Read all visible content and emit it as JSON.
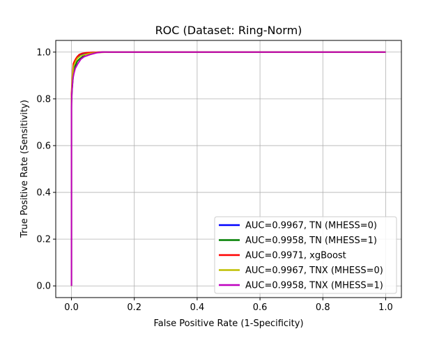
{
  "chart_data": {
    "type": "line",
    "title": "ROC (Dataset: Ring-Norm)",
    "xlabel": "False Positive Rate (1-Specificity)",
    "ylabel": "True Positive Rate (Sensitivity)",
    "xlim": [
      -0.05,
      1.05
    ],
    "ylim": [
      -0.05,
      1.05
    ],
    "xticks": [
      0.0,
      0.2,
      0.4,
      0.6,
      0.8,
      1.0
    ],
    "xtick_labels": [
      "0.0",
      "0.2",
      "0.4",
      "0.6",
      "0.8",
      "1.0"
    ],
    "yticks": [
      0.0,
      0.2,
      0.4,
      0.6,
      0.8,
      1.0
    ],
    "ytick_labels": [
      "0.0",
      "0.2",
      "0.4",
      "0.6",
      "0.8",
      "1.0"
    ],
    "grid": true,
    "legend_position": "bottom-right",
    "series": [
      {
        "name": "AUC=0.9967, TN (MHESS=0)",
        "color": "#0000ff",
        "x": [
          0.0,
          0.0,
          0.002,
          0.004,
          0.006,
          0.01,
          0.015,
          0.02,
          0.03,
          0.04,
          0.05,
          0.07,
          0.1,
          1.0
        ],
        "y": [
          0.0,
          0.8,
          0.86,
          0.9,
          0.93,
          0.95,
          0.97,
          0.98,
          0.99,
          0.995,
          0.997,
          0.999,
          1.0,
          1.0
        ]
      },
      {
        "name": "AUC=0.9958, TN (MHESS=1)",
        "color": "#008000",
        "x": [
          0.0,
          0.0,
          0.002,
          0.005,
          0.008,
          0.012,
          0.018,
          0.025,
          0.035,
          0.045,
          0.06,
          0.08,
          0.1,
          1.0
        ],
        "y": [
          0.0,
          0.78,
          0.84,
          0.89,
          0.92,
          0.94,
          0.96,
          0.97,
          0.98,
          0.99,
          0.995,
          0.998,
          1.0,
          1.0
        ]
      },
      {
        "name": "AUC=0.9971, xgBoost",
        "color": "#ff0000",
        "x": [
          0.0,
          0.0,
          0.002,
          0.004,
          0.006,
          0.009,
          0.013,
          0.018,
          0.025,
          0.035,
          0.05,
          0.07,
          0.09,
          1.0
        ],
        "y": [
          0.0,
          0.82,
          0.88,
          0.92,
          0.95,
          0.96,
          0.97,
          0.98,
          0.99,
          0.995,
          0.998,
          0.999,
          1.0,
          1.0
        ]
      },
      {
        "name": "AUC=0.9967, TNX (MHESS=0)",
        "color": "#bfbf00",
        "x": [
          0.0,
          0.0,
          0.002,
          0.004,
          0.007,
          0.01,
          0.015,
          0.02,
          0.03,
          0.045,
          0.06,
          0.08,
          0.12,
          1.0
        ],
        "y": [
          0.0,
          0.8,
          0.87,
          0.91,
          0.94,
          0.95,
          0.965,
          0.975,
          0.985,
          0.99,
          0.995,
          0.998,
          1.0,
          1.0
        ]
      },
      {
        "name": "AUC=0.9958, TNX (MHESS=1)",
        "color": "#bf00bf",
        "x": [
          0.0,
          0.0,
          0.001,
          0.003,
          0.005,
          0.008,
          0.012,
          0.016,
          0.02,
          0.025,
          0.03,
          0.04,
          0.05,
          0.06,
          0.08,
          0.1,
          1.0
        ],
        "y": [
          0.0,
          0.76,
          0.82,
          0.86,
          0.89,
          0.91,
          0.93,
          0.94,
          0.95,
          0.96,
          0.97,
          0.98,
          0.985,
          0.99,
          0.997,
          1.0,
          1.0
        ]
      }
    ]
  }
}
